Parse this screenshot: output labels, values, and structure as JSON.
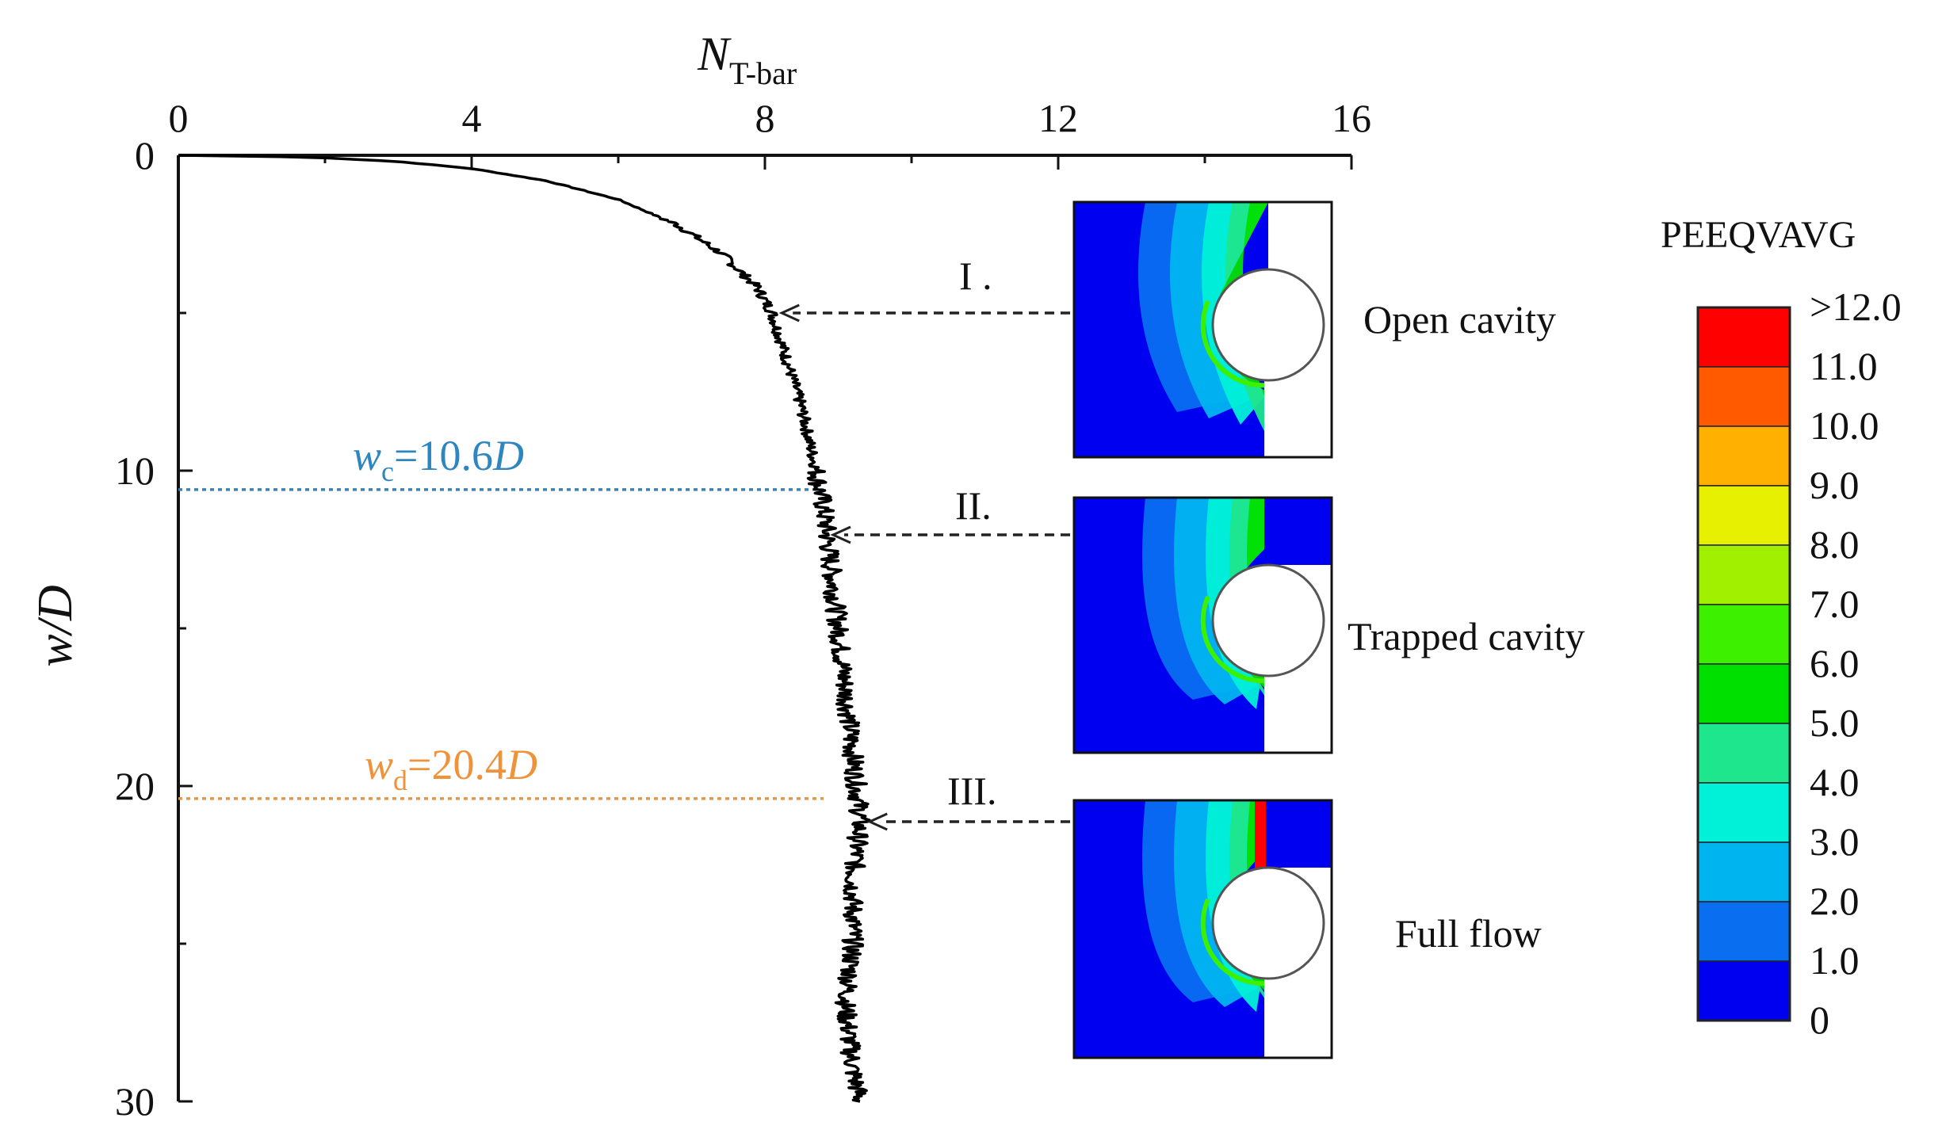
{
  "chart_data": {
    "type": "line",
    "x_axis": {
      "label_main": "N",
      "label_sub": "T-bar",
      "range": [
        0,
        16
      ],
      "ticks": [
        "0",
        "4",
        "8",
        "12",
        "16"
      ],
      "position": "top"
    },
    "y_axis": {
      "label": "w/D",
      "range": [
        0,
        30
      ],
      "inverted": true,
      "ticks": [
        "0",
        "10",
        "20",
        "30"
      ]
    },
    "series": [
      {
        "color": "#000000",
        "points": [
          [
            0,
            0
          ],
          [
            1,
            0.02
          ],
          [
            2,
            0.08
          ],
          [
            3,
            0.2
          ],
          [
            4,
            0.42
          ],
          [
            5,
            0.8
          ],
          [
            6,
            1.4
          ],
          [
            6.8,
            2.2
          ],
          [
            7.4,
            3.1
          ],
          [
            7.9,
            4.2
          ],
          [
            8.1,
            5.0
          ],
          [
            8.3,
            6.5
          ],
          [
            8.5,
            8.0
          ],
          [
            8.7,
            10.0
          ],
          [
            8.8,
            11.2
          ],
          [
            8.9,
            13.0
          ],
          [
            9.0,
            15.0
          ],
          [
            9.1,
            17.0
          ],
          [
            9.2,
            19.0
          ],
          [
            9.3,
            21.0
          ],
          [
            9.2,
            23.0
          ],
          [
            9.2,
            25.0
          ],
          [
            9.1,
            27.0
          ],
          [
            9.2,
            29.0
          ],
          [
            9.3,
            30.0
          ]
        ]
      }
    ],
    "reference_lines": [
      {
        "y": 10.6,
        "label_main": "w",
        "label_sub": "c",
        "label_value": "=10.6",
        "label_unit": "D",
        "color": "#2e86c1"
      },
      {
        "y": 20.4,
        "label_main": "w",
        "label_sub": "d",
        "label_value": "=20.4",
        "label_unit": "D",
        "color": "#f0923a"
      }
    ],
    "annotations": [
      {
        "marker": "I .",
        "target": [
          8.1,
          5.0
        ],
        "caption": "Open cavity"
      },
      {
        "marker": "II.",
        "target": [
          8.8,
          11.8
        ],
        "caption": "Trapped cavity"
      },
      {
        "marker": "III.",
        "target": [
          9.3,
          21.0
        ],
        "caption": "Full flow"
      }
    ],
    "colorbar": {
      "title": "PEEQVAVG",
      "labels": [
        ">12.0",
        "11.0",
        "10.0",
        "9.0",
        "8.0",
        "7.0",
        "6.0",
        "5.0",
        "4.0",
        "3.0",
        "2.0",
        "1.0",
        "0"
      ],
      "colors": [
        "#ff0000",
        "#ff5a00",
        "#ffb000",
        "#e6f000",
        "#a0f000",
        "#3cf000",
        "#00e000",
        "#1ee68c",
        "#00f0d8",
        "#00b4f0",
        "#0a6ef0",
        "#0000f0"
      ]
    }
  }
}
